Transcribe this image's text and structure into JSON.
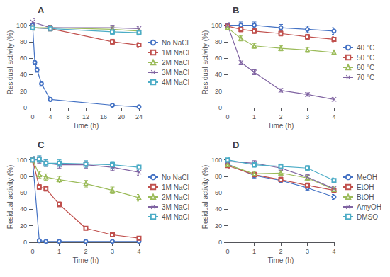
{
  "chart_data": [
    {
      "type": "line",
      "title": "A",
      "xlabel": "Time (h)",
      "ylabel": "Residual activity (%)",
      "xlim": [
        0,
        24
      ],
      "ylim": [
        0,
        110
      ],
      "xticks": [
        0,
        4,
        8,
        12,
        16,
        20,
        24
      ],
      "yticks": [
        0,
        20,
        40,
        60,
        80,
        100
      ],
      "grid": false,
      "legend": "right",
      "series": [
        {
          "name": "No NaCl",
          "color": "#4472c4",
          "marker": "circle",
          "x": [
            0,
            0.5,
            1,
            2,
            4,
            18,
            24
          ],
          "values": [
            100,
            55,
            46,
            29,
            10,
            3,
            1
          ],
          "yerr": [
            3,
            3,
            3,
            3,
            2,
            1,
            1
          ]
        },
        {
          "name": "1M NaCl",
          "color": "#c0504d",
          "marker": "square",
          "x": [
            0,
            4,
            18,
            24
          ],
          "values": [
            97,
            96,
            80,
            76
          ],
          "yerr": [
            3,
            3,
            3,
            3
          ]
        },
        {
          "name": "2M NaCl",
          "color": "#9bbb59",
          "marker": "triangle",
          "x": [
            0,
            4,
            18,
            24
          ],
          "values": [
            97,
            97,
            95,
            93
          ],
          "yerr": [
            3,
            3,
            3,
            3
          ]
        },
        {
          "name": "3M NaCl",
          "color": "#8064a2",
          "marker": "x",
          "x": [
            0,
            4,
            18,
            24
          ],
          "values": [
            104,
            97,
            97,
            96
          ],
          "yerr": [
            4,
            3,
            3,
            3
          ]
        },
        {
          "name": "4M NaCl",
          "color": "#4bacc6",
          "marker": "square",
          "x": [
            0,
            4,
            18,
            24
          ],
          "values": [
            97,
            96,
            92,
            91
          ],
          "yerr": [
            3,
            3,
            3,
            3
          ]
        }
      ]
    },
    {
      "type": "line",
      "title": "B",
      "xlabel": "Time (h)",
      "ylabel": "Residual activity (%)",
      "xlim": [
        0,
        4
      ],
      "ylim": [
        0,
        110
      ],
      "xticks": [
        0,
        1,
        2,
        3,
        4
      ],
      "yticks": [
        0,
        20,
        40,
        60,
        80,
        100
      ],
      "grid": false,
      "legend": "right",
      "series": [
        {
          "name": "40 °C",
          "color": "#4472c4",
          "marker": "circle",
          "x": [
            0,
            0.5,
            1,
            2,
            3,
            4
          ],
          "values": [
            100,
            100,
            100,
            97,
            95,
            93
          ],
          "yerr": [
            3,
            4,
            4,
            4,
            4,
            4
          ]
        },
        {
          "name": "50 °C",
          "color": "#c0504d",
          "marker": "square",
          "x": [
            0,
            0.5,
            1,
            2,
            3,
            4
          ],
          "values": [
            99,
            95,
            93,
            90,
            86,
            83
          ],
          "yerr": [
            3,
            3,
            3,
            3,
            3,
            3
          ]
        },
        {
          "name": "60 °C",
          "color": "#9bbb59",
          "marker": "triangle",
          "x": [
            0,
            0.5,
            1,
            2,
            3,
            4
          ],
          "values": [
            97,
            84,
            75,
            72,
            70,
            67
          ],
          "yerr": [
            3,
            3,
            3,
            3,
            3,
            3
          ]
        },
        {
          "name": "70 °C",
          "color": "#8064a2",
          "marker": "x",
          "x": [
            0,
            0.5,
            1,
            2,
            3,
            4
          ],
          "values": [
            100,
            55,
            43,
            21,
            16,
            10
          ],
          "yerr": [
            3,
            3,
            3,
            2,
            2,
            2
          ]
        }
      ]
    },
    {
      "type": "line",
      "title": "C",
      "xlabel": "Time (h)",
      "ylabel": "Residual activity (%)",
      "xlim": [
        0,
        4
      ],
      "ylim": [
        0,
        110
      ],
      "xticks": [
        0,
        1,
        2,
        3,
        4
      ],
      "yticks": [
        0,
        20,
        40,
        60,
        80,
        100
      ],
      "grid": false,
      "legend": "right",
      "series": [
        {
          "name": "No NaCl",
          "color": "#4472c4",
          "marker": "circle",
          "x": [
            0,
            0.25,
            0.5,
            1,
            2,
            3,
            4
          ],
          "values": [
            100,
            2,
            1,
            1,
            1,
            1,
            1
          ],
          "yerr": [
            3,
            1,
            1,
            1,
            1,
            1,
            1
          ]
        },
        {
          "name": "1M NaCl",
          "color": "#c0504d",
          "marker": "square",
          "x": [
            0,
            0.25,
            0.5,
            1,
            2,
            3,
            4
          ],
          "values": [
            100,
            67,
            65,
            46,
            17,
            9,
            5
          ],
          "yerr": [
            3,
            3,
            3,
            3,
            2,
            2,
            1
          ]
        },
        {
          "name": "2M NaCl",
          "color": "#9bbb59",
          "marker": "triangle",
          "x": [
            0,
            0.25,
            0.5,
            1,
            2,
            3,
            4
          ],
          "values": [
            100,
            82,
            79,
            76,
            71,
            63,
            54
          ],
          "yerr": [
            3,
            4,
            4,
            4,
            4,
            4,
            4
          ]
        },
        {
          "name": "3M NaCl",
          "color": "#8064a2",
          "marker": "x",
          "x": [
            0,
            0.25,
            0.5,
            1,
            2,
            3,
            4
          ],
          "values": [
            100,
            100,
            96,
            94,
            94,
            91,
            85
          ],
          "yerr": [
            4,
            4,
            4,
            4,
            4,
            4,
            4
          ]
        },
        {
          "name": "4M NaCl",
          "color": "#4bacc6",
          "marker": "square",
          "x": [
            0,
            0.25,
            0.5,
            1,
            2,
            3,
            4
          ],
          "values": [
            100,
            101,
            96,
            96,
            95,
            94,
            91
          ],
          "yerr": [
            4,
            4,
            4,
            4,
            4,
            4,
            4
          ]
        }
      ]
    },
    {
      "type": "line",
      "title": "D",
      "xlabel": "Time (h)",
      "ylabel": "Residual activity (%)",
      "xlim": [
        0,
        4
      ],
      "ylim": [
        0,
        110
      ],
      "xticks": [
        0,
        1,
        2,
        3,
        4
      ],
      "yticks": [
        0,
        20,
        40,
        60,
        80,
        100
      ],
      "grid": false,
      "legend": "right",
      "series": [
        {
          "name": "MeOH",
          "color": "#4472c4",
          "marker": "circle",
          "x": [
            0,
            1,
            2,
            3,
            4
          ],
          "values": [
            95,
            81,
            75,
            66,
            55
          ],
          "yerr": [
            3,
            3,
            3,
            3,
            3
          ]
        },
        {
          "name": "EtOH",
          "color": "#c0504d",
          "marker": "square",
          "x": [
            0,
            1,
            2,
            3,
            4
          ],
          "values": [
            93,
            82,
            76,
            69,
            63
          ],
          "yerr": [
            3,
            3,
            3,
            3,
            3
          ]
        },
        {
          "name": "BtOH",
          "color": "#9bbb59",
          "marker": "triangle",
          "x": [
            0,
            1,
            2,
            3,
            4
          ],
          "values": [
            94,
            83,
            84,
            78,
            64
          ],
          "yerr": [
            3,
            3,
            3,
            3,
            3
          ]
        },
        {
          "name": "AmyOH",
          "color": "#8064a2",
          "marker": "x",
          "x": [
            0,
            1,
            2,
            3,
            4
          ],
          "values": [
            98,
            96,
            90,
            79,
            65
          ],
          "yerr": [
            3,
            3,
            3,
            3,
            3
          ]
        },
        {
          "name": "DMSO",
          "color": "#4bacc6",
          "marker": "square",
          "x": [
            0,
            1,
            2,
            3,
            4
          ],
          "values": [
            100,
            94,
            92,
            90,
            75
          ],
          "yerr": [
            3,
            3,
            3,
            3,
            3
          ]
        }
      ]
    }
  ]
}
